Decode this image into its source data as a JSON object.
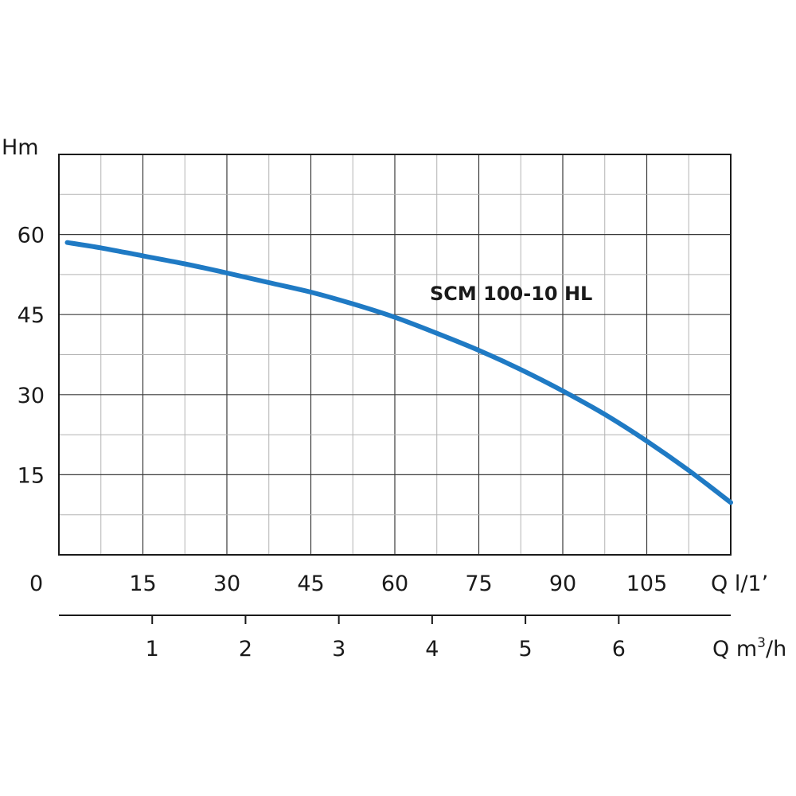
{
  "chart_data": {
    "type": "line",
    "title": "",
    "ylabel": "Hm",
    "xlabel": "Q l/1’",
    "x2label_prefix": "Q m",
    "x2label_sup": "3",
    "x2label_suffix": "/h",
    "origin_label": "0",
    "xlim": [
      0,
      120
    ],
    "ylim": [
      0,
      75
    ],
    "x_ticks": [
      "15",
      "30",
      "45",
      "60",
      "75",
      "90",
      "105"
    ],
    "x_tick_values": [
      15,
      30,
      45,
      60,
      75,
      90,
      105
    ],
    "y_ticks": [
      "15",
      "30",
      "45",
      "60"
    ],
    "y_tick_values": [
      15,
      30,
      45,
      60
    ],
    "x2_ticks": [
      "1",
      "2",
      "3",
      "4",
      "5",
      "6"
    ],
    "x2_tick_values": [
      1,
      2,
      3,
      4,
      5,
      6
    ],
    "x2lim": [
      0,
      7.2
    ],
    "grid": true,
    "series": [
      {
        "name": "SCM 100-10 HL",
        "color": "#1f7ac4",
        "x": [
          1.5,
          7.5,
          15,
          22.5,
          30,
          37.5,
          45,
          52.5,
          60,
          67.5,
          75,
          82.5,
          90,
          97.5,
          105,
          112.5,
          120
        ],
        "y": [
          58.5,
          57.5,
          56.0,
          54.5,
          52.8,
          51.0,
          49.2,
          47.0,
          44.5,
          41.5,
          38.3,
          34.7,
          30.7,
          26.3,
          21.3,
          15.8,
          9.8
        ]
      }
    ]
  }
}
